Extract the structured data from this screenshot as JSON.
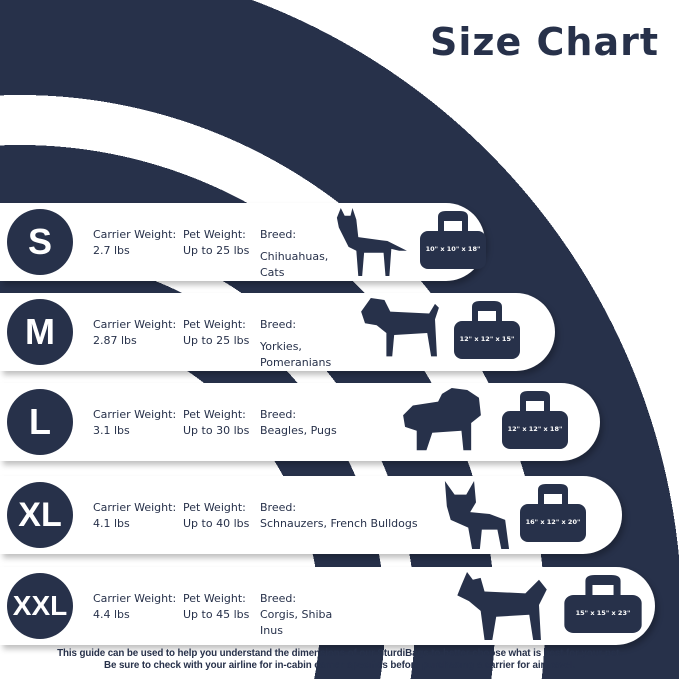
{
  "title": "Size Chart",
  "colors": {
    "navy": "#27314a",
    "white": "#ffffff"
  },
  "labels": {
    "carrier_weight": "Carrier Weight:",
    "pet_weight": "Pet Weight:",
    "breed": "Breed:"
  },
  "sizes": [
    {
      "size": "S",
      "carrier_weight": "2.7 lbs",
      "pet_weight": "Up to 25 lbs",
      "breeds": "Chihuahuas, Cats",
      "animal_icon": "cat-icon",
      "bag_dims": "10\" x 10\" x 18\""
    },
    {
      "size": "M",
      "carrier_weight": "2.87 lbs",
      "pet_weight": "Up to 25 lbs",
      "breeds": "Yorkies, Pomeranians",
      "animal_icon": "terrier-icon",
      "bag_dims": "12\" x 12\" x 15\""
    },
    {
      "size": "L",
      "carrier_weight": "3.1 lbs",
      "pet_weight": "Up to 30 lbs",
      "breeds": "Beagles, Pugs",
      "animal_icon": "pug-icon",
      "bag_dims": "12\" x 12\" x 18\""
    },
    {
      "size": "XL",
      "carrier_weight": "4.1 lbs",
      "pet_weight": "Up to 40 lbs",
      "breeds": "Schnauzers, French Bulldogs",
      "animal_icon": "french-bulldog-icon",
      "bag_dims": "16\" x 12\" x 20\""
    },
    {
      "size": "XXL",
      "carrier_weight": "4.4 lbs",
      "pet_weight": "Up to 45 lbs",
      "breeds": "Corgis, Shiba Inus",
      "animal_icon": "shiba-icon",
      "bag_dims": "15\" x 15\" x 23\""
    }
  ],
  "footer": {
    "line1": "This guide can be used to help you understand the dimensions of our SturdiBags to better choose what is best for your pet.",
    "line2": "Be sure to check with your airline for in-cabin carrier specifics before purchasing a carrier for air travel."
  }
}
